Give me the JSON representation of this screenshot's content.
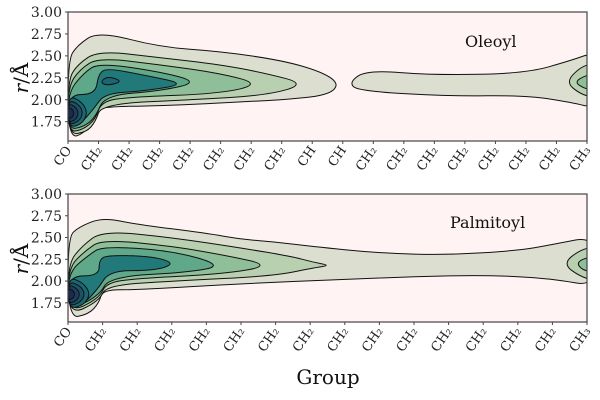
{
  "chart_data": [
    {
      "type": "contour",
      "panel_label": "Oleoyl",
      "ylabel_var": "r",
      "ylabel_unit": "/Å",
      "ylim": [
        1.53,
        3.0
      ],
      "yticks": [
        "3.00",
        "2.75",
        "2.50",
        "2.25",
        "2.00",
        "1.75"
      ],
      "ytick_values": [
        3.0,
        2.75,
        2.5,
        2.25,
        2.0,
        1.75
      ],
      "categories": [
        "CO",
        "CH₂",
        "CH₂",
        "CH₂",
        "CH₂",
        "CH₂",
        "CH₂",
        "CH₂",
        "CH",
        "CH",
        "CH₂",
        "CH₂",
        "CH₂",
        "CH₂",
        "CH₂",
        "CH₂",
        "CH₂",
        "CH₃"
      ],
      "background_color": "#fff4f3",
      "contours": [
        {
          "level": 1,
          "color": "#dcdfd0",
          "points": [
            [
              0,
              2.45
            ],
            [
              0.3,
              2.62
            ],
            [
              1,
              2.78
            ],
            [
              3,
              2.6
            ],
            [
              5,
              2.55
            ],
            [
              7,
              2.45
            ],
            [
              8.3,
              2.32
            ],
            [
              8.9,
              2.18
            ],
            [
              8.5,
              2.05
            ],
            [
              7,
              2.0
            ],
            [
              6,
              1.98
            ],
            [
              3,
              1.93
            ],
            [
              1.05,
              1.92
            ],
            [
              0.95,
              1.85
            ],
            [
              0.6,
              1.63
            ],
            [
              0,
              1.55
            ]
          ]
        },
        {
          "level": 1,
          "color": "#dcdfd0",
          "points": [
            [
              9.2,
              2.2
            ],
            [
              9.8,
              2.34
            ],
            [
              12,
              2.28
            ],
            [
              15,
              2.3
            ],
            [
              16.5,
              2.45
            ],
            [
              17.3,
              2.55
            ],
            [
              17.3,
              1.9
            ],
            [
              16.5,
              1.97
            ],
            [
              15,
              2.05
            ],
            [
              12.5,
              2.04
            ],
            [
              9.5,
              2.1
            ]
          ]
        },
        {
          "level": 2,
          "color": "#b8cfb0",
          "points": [
            [
              0,
              2.22
            ],
            [
              0.3,
              2.4
            ],
            [
              1,
              2.56
            ],
            [
              3,
              2.48
            ],
            [
              5,
              2.4
            ],
            [
              6.5,
              2.3
            ],
            [
              7.8,
              2.18
            ],
            [
              6.5,
              2.05
            ],
            [
              4,
              2.0
            ],
            [
              1.1,
              1.95
            ],
            [
              0.9,
              1.75
            ],
            [
              0.6,
              1.63
            ],
            [
              0,
              1.6
            ]
          ]
        },
        {
          "level": 2,
          "color": "#b8cfb0",
          "points": [
            [
              17.3,
              2.42
            ],
            [
              16.8,
              2.38
            ],
            [
              16.3,
              2.2
            ],
            [
              16.8,
              2.06
            ],
            [
              17.3,
              2.02
            ]
          ]
        },
        {
          "level": 3,
          "color": "#8fbf98",
          "points": [
            [
              0,
              2.15
            ],
            [
              0.4,
              2.35
            ],
            [
              1,
              2.48
            ],
            [
              3,
              2.4
            ],
            [
              5,
              2.3
            ],
            [
              6.3,
              2.18
            ],
            [
              5,
              2.07
            ],
            [
              2,
              2.03
            ],
            [
              1.1,
              1.98
            ],
            [
              0.9,
              1.78
            ],
            [
              0.5,
              1.66
            ],
            [
              0,
              1.63
            ]
          ]
        },
        {
          "level": 3,
          "color": "#8fbf98",
          "points": [
            [
              17.3,
              2.3
            ],
            [
              16.9,
              2.27
            ],
            [
              16.6,
              2.2
            ],
            [
              16.9,
              2.13
            ],
            [
              17.3,
              2.1
            ]
          ]
        },
        {
          "level": 4,
          "color": "#5fa88a",
          "points": [
            [
              0,
              2.08
            ],
            [
              0.5,
              2.3
            ],
            [
              1,
              2.42
            ],
            [
              3,
              2.32
            ],
            [
              4.3,
              2.2
            ],
            [
              3,
              2.1
            ],
            [
              1.2,
              2.05
            ],
            [
              0.9,
              1.8
            ],
            [
              0.5,
              1.69
            ],
            [
              0,
              1.66
            ]
          ]
        },
        {
          "level": 5,
          "color": "#217a79",
          "points": [
            [
              0,
              2.06
            ],
            [
              0.9,
              2.06
            ],
            [
              1,
              2.3
            ],
            [
              1.3,
              2.36
            ],
            [
              2.5,
              2.28
            ],
            [
              3.9,
              2.18
            ],
            [
              2.5,
              2.1
            ],
            [
              1.2,
              2.07
            ],
            [
              0.85,
              1.9
            ],
            [
              0.4,
              1.72
            ],
            [
              0,
              1.7
            ]
          ]
        },
        {
          "level": 6,
          "color": "#1b6672",
          "points": [
            [
              1.05,
              2.2
            ],
            [
              1.3,
              2.27
            ],
            [
              1.8,
              2.21
            ],
            [
              1.3,
              2.16
            ]
          ]
        },
        {
          "level": 6,
          "color": "#1b6672",
          "points": [
            [
              0,
              2.05
            ],
            [
              0.45,
              1.98
            ],
            [
              0.65,
              1.85
            ],
            [
              0.45,
              1.72
            ],
            [
              0,
              1.68
            ]
          ]
        },
        {
          "level": 7,
          "color": "#1b5266",
          "points": [
            [
              0,
              2.0
            ],
            [
              0.35,
              1.95
            ],
            [
              0.5,
              1.85
            ],
            [
              0.35,
              1.75
            ],
            [
              0,
              1.71
            ]
          ]
        },
        {
          "level": 8,
          "color": "#1c3d5c",
          "points": [
            [
              0,
              1.96
            ],
            [
              0.25,
              1.92
            ],
            [
              0.35,
              1.85
            ],
            [
              0.25,
              1.77
            ],
            [
              0,
              1.74
            ]
          ]
        },
        {
          "level": 9,
          "color": "#1b2a4e",
          "points": [
            [
              0,
              1.92
            ],
            [
              0.15,
              1.89
            ],
            [
              0.2,
              1.85
            ],
            [
              0.15,
              1.8
            ],
            [
              0,
              1.78
            ]
          ]
        }
      ]
    },
    {
      "type": "contour",
      "panel_label": "Palmitoyl",
      "ylabel_var": "r",
      "ylabel_unit": "/Å",
      "xlabel": "Group",
      "ylim": [
        1.53,
        3.0
      ],
      "yticks": [
        "3.00",
        "2.75",
        "2.50",
        "2.25",
        "2.00",
        "1.75"
      ],
      "ytick_values": [
        3.0,
        2.75,
        2.5,
        2.25,
        2.0,
        1.75
      ],
      "categories": [
        "CO",
        "CH₂",
        "CH₂",
        "CH₂",
        "CH₂",
        "CH₂",
        "CH₂",
        "CH₂",
        "CH₂",
        "CH₂",
        "CH₂",
        "CH₂",
        "CH₂",
        "CH₂",
        "CH₂",
        "CH₃"
      ],
      "background_color": "#fff4f3",
      "contours": [
        {
          "level": 1,
          "color": "#dcdfd0",
          "points": [
            [
              0,
              2.5
            ],
            [
              0.3,
              2.62
            ],
            [
              1,
              2.73
            ],
            [
              2,
              2.65
            ],
            [
              4,
              2.55
            ],
            [
              5,
              2.48
            ],
            [
              6,
              2.45
            ],
            [
              7,
              2.4
            ],
            [
              9,
              2.32
            ],
            [
              11,
              2.3
            ],
            [
              13,
              2.35
            ],
            [
              14,
              2.42
            ],
            [
              15.3,
              2.52
            ],
            [
              15.3,
              1.93
            ],
            [
              14,
              2.03
            ],
            [
              12,
              2.07
            ],
            [
              10,
              2.05
            ],
            [
              8,
              2.02
            ],
            [
              5,
              1.97
            ],
            [
              2,
              1.9
            ],
            [
              1,
              1.9
            ],
            [
              0.9,
              1.75
            ],
            [
              0.6,
              1.62
            ],
            [
              0,
              1.57
            ]
          ]
        },
        {
          "level": 2,
          "color": "#b8cfb0",
          "points": [
            [
              0,
              2.2
            ],
            [
              0.4,
              2.4
            ],
            [
              1,
              2.58
            ],
            [
              3,
              2.5
            ],
            [
              5,
              2.38
            ],
            [
              6.5,
              2.28
            ],
            [
              7.05,
              2.22
            ],
            [
              7.6,
              2.18
            ],
            [
              7.05,
              2.15
            ],
            [
              6,
              2.06
            ],
            [
              3,
              2.0
            ],
            [
              1.1,
              1.95
            ],
            [
              0.9,
              1.77
            ],
            [
              0,
              1.6
            ]
          ]
        },
        {
          "level": 2,
          "color": "#b8cfb0",
          "points": [
            [
              15.3,
              2.4
            ],
            [
              14.8,
              2.36
            ],
            [
              14.3,
              2.2
            ],
            [
              14.8,
              2.05
            ],
            [
              15.3,
              2.0
            ]
          ]
        },
        {
          "level": 3,
          "color": "#8fbf98",
          "points": [
            [
              0,
              2.15
            ],
            [
              0.5,
              2.35
            ],
            [
              1,
              2.48
            ],
            [
              3,
              2.4
            ],
            [
              4.5,
              2.3
            ],
            [
              5.9,
              2.18
            ],
            [
              4.5,
              2.08
            ],
            [
              2,
              2.03
            ],
            [
              1.1,
              1.98
            ],
            [
              0.9,
              1.8
            ],
            [
              0,
              1.63
            ]
          ]
        },
        {
          "level": 3,
          "color": "#8fbf98",
          "points": [
            [
              15.3,
              2.28
            ],
            [
              14.9,
              2.26
            ],
            [
              14.7,
              2.2
            ],
            [
              14.9,
              2.12
            ],
            [
              15.3,
              2.1
            ]
          ]
        },
        {
          "level": 4,
          "color": "#5fa88a",
          "points": [
            [
              0,
              2.1
            ],
            [
              0.6,
              2.3
            ],
            [
              1,
              2.4
            ],
            [
              3,
              2.35
            ],
            [
              4.5,
              2.18
            ],
            [
              3.5,
              2.1
            ],
            [
              1.2,
              2.05
            ],
            [
              0.9,
              1.83
            ],
            [
              0,
              1.66
            ]
          ]
        },
        {
          "level": 5,
          "color": "#217a79",
          "points": [
            [
              0,
              2.06
            ],
            [
              0.9,
              2.06
            ],
            [
              0.9,
              2.25
            ],
            [
              1.2,
              2.3
            ],
            [
              2.5,
              2.28
            ],
            [
              3.1,
              2.2
            ],
            [
              2.5,
              2.12
            ],
            [
              1.2,
              2.12
            ],
            [
              0.85,
              1.9
            ],
            [
              0.4,
              1.72
            ],
            [
              0,
              1.7
            ]
          ]
        },
        {
          "level": 6,
          "color": "#1b6672",
          "points": [
            [
              0,
              2.05
            ],
            [
              0.45,
              1.98
            ],
            [
              0.65,
              1.85
            ],
            [
              0.45,
              1.72
            ],
            [
              0,
              1.68
            ]
          ]
        },
        {
          "level": 7,
          "color": "#1b5266",
          "points": [
            [
              0,
              2.0
            ],
            [
              0.35,
              1.95
            ],
            [
              0.5,
              1.85
            ],
            [
              0.35,
              1.75
            ],
            [
              0,
              1.71
            ]
          ]
        },
        {
          "level": 8,
          "color": "#1c3d5c",
          "points": [
            [
              0,
              1.96
            ],
            [
              0.25,
              1.92
            ],
            [
              0.35,
              1.85
            ],
            [
              0.25,
              1.77
            ],
            [
              0,
              1.74
            ]
          ]
        },
        {
          "level": 9,
          "color": "#1b2a4e",
          "points": [
            [
              0,
              1.92
            ],
            [
              0.15,
              1.89
            ],
            [
              0.2,
              1.85
            ],
            [
              0.15,
              1.8
            ],
            [
              0,
              1.78
            ]
          ]
        }
      ]
    }
  ]
}
